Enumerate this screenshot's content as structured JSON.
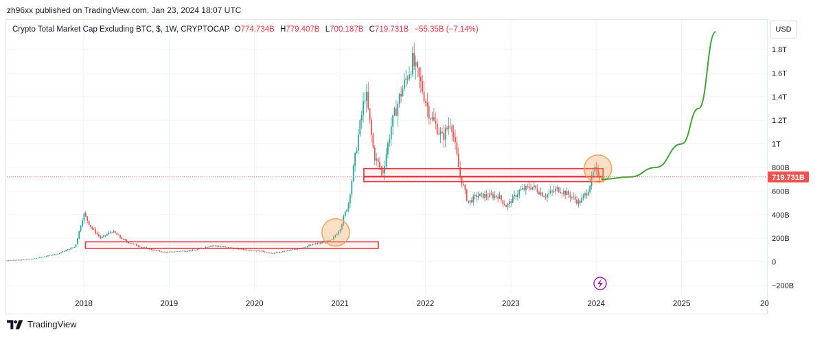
{
  "header": {
    "publisher": "zh96xx published on TradingView.com, Jan 23, 2024 18:07 UTC"
  },
  "legend": {
    "symbol": "Crypto Total Market Cap Excluding BTC, $, 1W, CRYPTOCAP",
    "open_label": "O",
    "open": "774.734B",
    "high_label": "H",
    "high": "779.407B",
    "low_label": "L",
    "low": "700.187B",
    "close_label": "C",
    "close": "719.731B",
    "change": "−55.35B (−7.14%)"
  },
  "currency": "USD",
  "price_tag": "719.731B",
  "footer": {
    "brand": "TradingView"
  },
  "colors": {
    "up": "#26a69a",
    "down": "#ef5350",
    "projection": "#3fa535",
    "zone": "#e5343b",
    "circle": "#f5a35c",
    "lightning": "#9c27b0"
  },
  "chart_data": {
    "type": "candlestick",
    "title": "Crypto Total Market Cap Excluding BTC, $, 1W, CRYPTOCAP",
    "x_ticks": [
      "2018",
      "2019",
      "2020",
      "2021",
      "2022",
      "2023",
      "2024",
      "2025",
      "20"
    ],
    "y_ticks": [
      "1.8T",
      "1.6T",
      "1.4T",
      "1.2T",
      "1T",
      "800B",
      "600B",
      "400B",
      "200B",
      "0",
      "−200B"
    ],
    "y_tick_values": [
      1800,
      1600,
      1400,
      1200,
      1000,
      800,
      600,
      400,
      200,
      0,
      -200
    ],
    "ylim": [
      -270,
      2050
    ],
    "xlim": [
      2017.1,
      2026.0
    ],
    "unit": "B USD",
    "last_price": 719.731,
    "price_path": [
      [
        2017.1,
        12
      ],
      [
        2017.4,
        25
      ],
      [
        2017.7,
        70
      ],
      [
        2017.9,
        130
      ],
      [
        2018.0,
        410
      ],
      [
        2018.08,
        300
      ],
      [
        2018.2,
        200
      ],
      [
        2018.33,
        260
      ],
      [
        2018.5,
        170
      ],
      [
        2018.7,
        120
      ],
      [
        2018.95,
        80
      ],
      [
        2019.3,
        100
      ],
      [
        2019.5,
        140
      ],
      [
        2019.8,
        110
      ],
      [
        2020.1,
        90
      ],
      [
        2020.2,
        70
      ],
      [
        2020.5,
        110
      ],
      [
        2020.7,
        150
      ],
      [
        2020.9,
        180
      ],
      [
        2021.0,
        280
      ],
      [
        2021.1,
        500
      ],
      [
        2021.2,
        1000
      ],
      [
        2021.3,
        1450
      ],
      [
        2021.4,
        900
      ],
      [
        2021.5,
        750
      ],
      [
        2021.6,
        1150
      ],
      [
        2021.7,
        1400
      ],
      [
        2021.85,
        1700
      ],
      [
        2021.95,
        1500
      ],
      [
        2022.05,
        1250
      ],
      [
        2022.2,
        1050
      ],
      [
        2022.3,
        1200
      ],
      [
        2022.4,
        750
      ],
      [
        2022.5,
        500
      ],
      [
        2022.6,
        560
      ],
      [
        2022.85,
        560
      ],
      [
        2022.95,
        470
      ],
      [
        2023.1,
        600
      ],
      [
        2023.25,
        640
      ],
      [
        2023.4,
        560
      ],
      [
        2023.55,
        620
      ],
      [
        2023.7,
        560
      ],
      [
        2023.8,
        500
      ],
      [
        2023.9,
        600
      ],
      [
        2023.98,
        780
      ],
      [
        2024.06,
        720
      ]
    ],
    "zones": [
      {
        "x0": 2018.02,
        "x1": 2021.45,
        "y_top": 170,
        "y_bottom": 115
      },
      {
        "x0": 2021.28,
        "x1": 2024.08,
        "y_top": 790,
        "y_bottom": 725
      },
      {
        "x0": 2021.28,
        "x1": 2024.08,
        "y_top": 720,
        "y_bottom": 680
      }
    ],
    "circles": [
      {
        "x": 2020.95,
        "y": 250
      },
      {
        "x": 2024.02,
        "y": 790
      }
    ],
    "projection": [
      [
        2024.06,
        700
      ],
      [
        2024.4,
        720
      ],
      [
        2024.7,
        800
      ],
      [
        2025.0,
        1000
      ],
      [
        2025.2,
        1300
      ],
      [
        2025.4,
        1950
      ]
    ]
  }
}
